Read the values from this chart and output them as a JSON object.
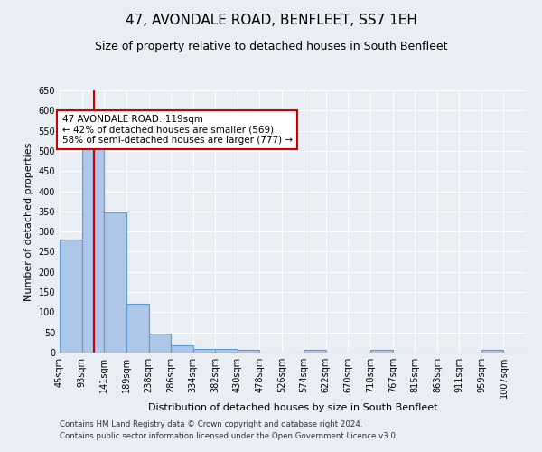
{
  "title": "47, AVONDALE ROAD, BENFLEET, SS7 1EH",
  "subtitle": "Size of property relative to detached houses in South Benfleet",
  "xlabel": "Distribution of detached houses by size in South Benfleet",
  "ylabel": "Number of detached properties",
  "footnote1": "Contains HM Land Registry data © Crown copyright and database right 2024.",
  "footnote2": "Contains public sector information licensed under the Open Government Licence v3.0.",
  "bin_labels": [
    "45sqm",
    "93sqm",
    "141sqm",
    "189sqm",
    "238sqm",
    "286sqm",
    "334sqm",
    "382sqm",
    "430sqm",
    "478sqm",
    "526sqm",
    "574sqm",
    "622sqm",
    "670sqm",
    "718sqm",
    "767sqm",
    "815sqm",
    "863sqm",
    "911sqm",
    "959sqm",
    "1007sqm"
  ],
  "bin_edges": [
    45,
    93,
    141,
    189,
    238,
    286,
    334,
    382,
    430,
    478,
    526,
    574,
    622,
    670,
    718,
    767,
    815,
    863,
    911,
    959,
    1007,
    1055
  ],
  "bar_heights": [
    280,
    525,
    348,
    122,
    48,
    17,
    10,
    10,
    6,
    0,
    0,
    6,
    0,
    0,
    6,
    0,
    0,
    0,
    0,
    6,
    0
  ],
  "bar_color": "#aec6e8",
  "bar_edge_color": "#5a9bd4",
  "property_size": 119,
  "red_line_color": "#cc0000",
  "annotation_text": "47 AVONDALE ROAD: 119sqm\n← 42% of detached houses are smaller (569)\n58% of semi-detached houses are larger (777) →",
  "annotation_box_color": "#ffffff",
  "annotation_box_edge_color": "#cc0000",
  "ylim": [
    0,
    650
  ],
  "yticks": [
    0,
    50,
    100,
    150,
    200,
    250,
    300,
    350,
    400,
    450,
    500,
    550,
    600,
    650
  ],
  "background_color": "#e8eef4",
  "plot_bg_color": "#e8eef4",
  "title_fontsize": 11,
  "subtitle_fontsize": 9,
  "axis_label_fontsize": 8,
  "tick_fontsize": 7,
  "annotation_fontsize": 7.5
}
